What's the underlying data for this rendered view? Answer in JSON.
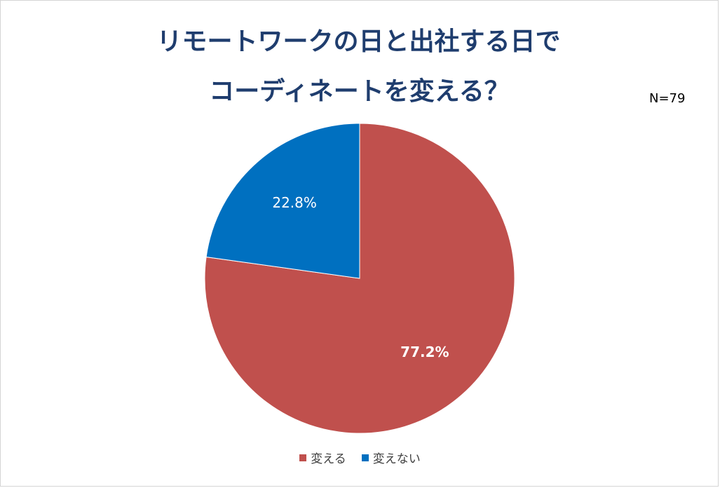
{
  "chart_data": {
    "type": "pie",
    "title_lines": [
      "リモートワークの日と出社する日で",
      "コーディネートを変える？"
    ],
    "annotation": "N=79",
    "slices": [
      {
        "name": "変える",
        "value": 77.2,
        "label": "77.2%",
        "color": "#c0504d",
        "label_color": "#ffffff",
        "label_bold": true
      },
      {
        "name": "変えない",
        "value": 22.8,
        "label": "22.8%",
        "color": "#0070c0",
        "label_color": "#ffffff",
        "label_bold": false
      }
    ],
    "start_angle_deg": 0,
    "direction": "clockwise",
    "legend_position": "bottom"
  }
}
